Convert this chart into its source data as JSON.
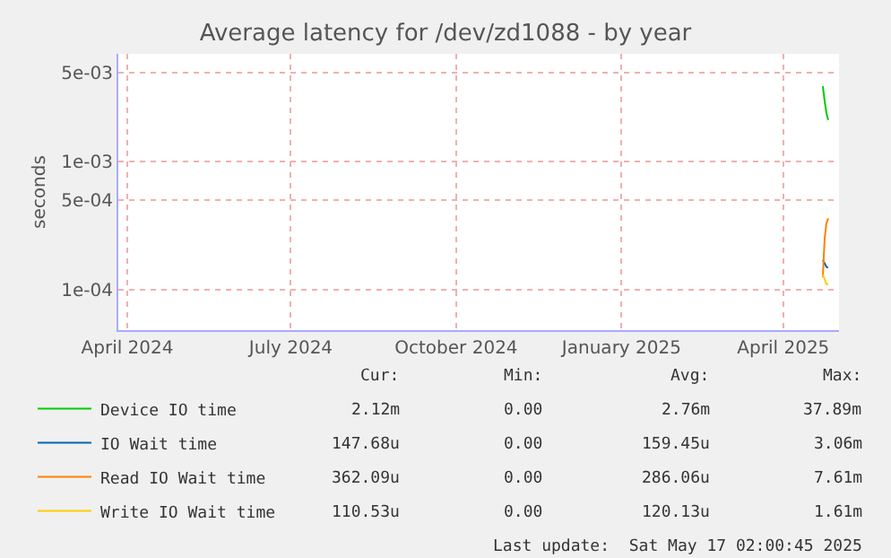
{
  "chart_data": {
    "type": "line",
    "title": "Average latency for /dev/zd1088 - by year",
    "ylabel": "seconds",
    "x": [
      "2025-04-23",
      "2025-04-24",
      "2025-04-25",
      "2025-04-26"
    ],
    "series": [
      {
        "name": "Device IO time",
        "color": "#00cc00",
        "values": [
          0.0039,
          0.003,
          0.0024,
          0.00212
        ]
      },
      {
        "name": "IO Wait time",
        "color": "#0066b3",
        "values": [
          0.00017,
          0.00016,
          0.00015,
          0.000148
        ]
      },
      {
        "name": "Read IO Wait time",
        "color": "#ff8000",
        "values": [
          0.000125,
          0.00025,
          0.00033,
          0.00036
        ]
      },
      {
        "name": "Write IO Wait time",
        "color": "#ffcc00",
        "values": [
          0.00013,
          0.00012,
          0.00011,
          0.00011
        ]
      }
    ],
    "log": true,
    "ylim": [
      4.8e-05,
      0.007
    ],
    "yticks": [
      {
        "value": 0.005,
        "label": "5e-03"
      },
      {
        "value": 0.001,
        "label": "1e-03"
      },
      {
        "value": 0.0005,
        "label": "5e-04"
      },
      {
        "value": 0.0001,
        "label": "1e-04"
      }
    ],
    "xlim": [
      "2024-03-27",
      "2025-05-02"
    ],
    "xticks": [
      {
        "value": "2024-04-01",
        "label": "April 2024"
      },
      {
        "value": "2024-07-01",
        "label": "July 2024"
      },
      {
        "value": "2024-10-01",
        "label": "October 2024"
      },
      {
        "value": "2025-01-01",
        "label": "January 2025"
      },
      {
        "value": "2025-04-01",
        "label": "April 2025"
      }
    ],
    "grid": true,
    "legend": "bottom left",
    "annotations": [
      "Cur:",
      "Min:",
      "Avg:",
      "Max:",
      "2.12m",
      "0.00",
      "2.76m",
      "37.89m",
      "147.68u",
      "0.00",
      "159.45u",
      "3.06m",
      "362.09u",
      "0.00",
      "286.06u",
      "7.61m",
      "110.53u",
      "0.00",
      "120.13u",
      "1.61m",
      "Last update:  Sat May 17 02:00:45 2025"
    ]
  }
}
